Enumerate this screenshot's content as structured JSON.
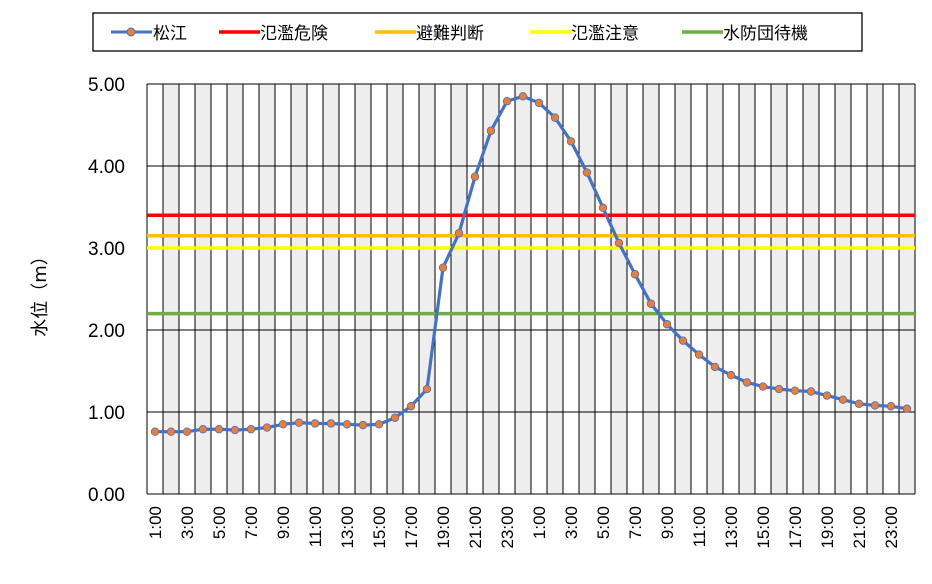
{
  "chart_data": {
    "type": "line",
    "ylabel": "水位（m）",
    "xlabel": "",
    "title": "",
    "ylim": [
      0,
      5
    ],
    "yticks": [
      "0.00",
      "1.00",
      "2.00",
      "3.00",
      "4.00",
      "5.00"
    ],
    "grid": true,
    "legend_position": "top",
    "categories": [
      "1:00",
      "2:00",
      "3:00",
      "4:00",
      "5:00",
      "6:00",
      "7:00",
      "8:00",
      "9:00",
      "10:00",
      "11:00",
      "12:00",
      "13:00",
      "14:00",
      "15:00",
      "16:00",
      "17:00",
      "18:00",
      "19:00",
      "20:00",
      "21:00",
      "22:00",
      "23:00",
      "0:00",
      "1:00",
      "2:00",
      "3:00",
      "4:00",
      "5:00",
      "6:00",
      "7:00",
      "8:00",
      "9:00",
      "10:00",
      "11:00",
      "12:00",
      "13:00",
      "14:00",
      "15:00",
      "16:00",
      "17:00",
      "18:00",
      "19:00",
      "20:00",
      "21:00",
      "22:00",
      "23:00",
      "0:00"
    ],
    "tick_labels_shown": [
      "1:00",
      "3:00",
      "5:00",
      "7:00",
      "9:00",
      "11:00",
      "13:00",
      "15:00",
      "17:00",
      "19:00",
      "21:00",
      "23:00",
      "1:00",
      "3:00",
      "5:00",
      "7:00",
      "9:00",
      "11:00",
      "13:00",
      "15:00",
      "17:00",
      "19:00",
      "21:00",
      "23:00"
    ],
    "series": [
      {
        "name": "松江",
        "color": "#4472C4",
        "marker_color": "#ED7D31",
        "values": [
          0.76,
          0.76,
          0.76,
          0.79,
          0.79,
          0.78,
          0.79,
          0.81,
          0.85,
          0.87,
          0.86,
          0.86,
          0.85,
          0.84,
          0.85,
          0.93,
          1.07,
          1.28,
          2.76,
          3.18,
          3.87,
          4.43,
          4.79,
          4.85,
          4.77,
          4.59,
          4.3,
          3.92,
          3.49,
          3.06,
          2.68,
          2.32,
          2.07,
          1.87,
          1.7,
          1.55,
          1.45,
          1.36,
          1.31,
          1.28,
          1.26,
          1.25,
          1.2,
          1.15,
          1.1,
          1.08,
          1.07,
          1.04
        ]
      }
    ],
    "reference_lines": [
      {
        "name": "氾濫危険",
        "value": 3.4,
        "color": "#FF0000"
      },
      {
        "name": "避難判断",
        "value": 3.15,
        "color": "#FFC000"
      },
      {
        "name": "氾濫注意",
        "value": 3.0,
        "color": "#FFFF00"
      },
      {
        "name": "水防団待機",
        "value": 2.2,
        "color": "#70AD47"
      }
    ]
  }
}
